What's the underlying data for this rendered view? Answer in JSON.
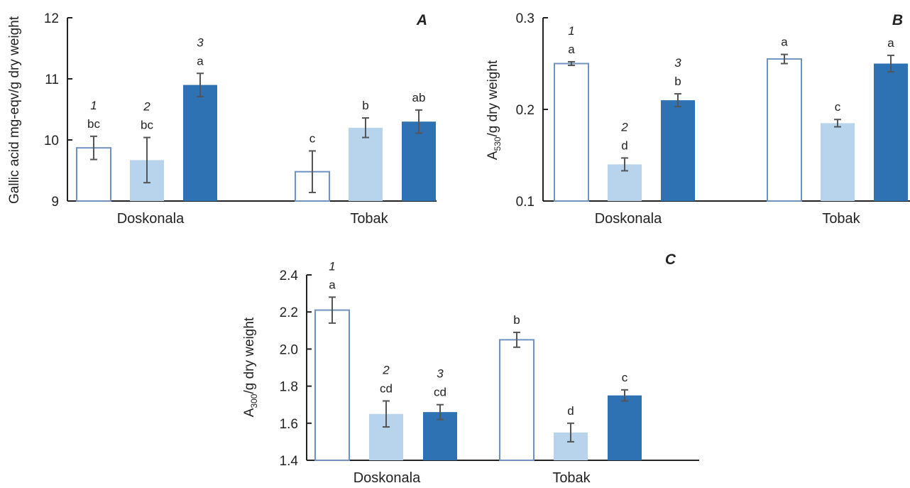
{
  "colors": {
    "treatment1": "#ffffff",
    "treatment1_stroke": "#6f93be",
    "treatment2": "#b7d4ec",
    "treatment3": "#2e72b3",
    "axis": "#222222",
    "error": "#555555"
  },
  "chart_data": [
    {
      "type": "bar",
      "panel_label": "A",
      "ylabel": "Gallic acid mg-eqv/g dry weight",
      "ylim": [
        9,
        12
      ],
      "yticks": [
        "9",
        "10",
        "11",
        "12"
      ],
      "categories": [
        "Doskonala",
        "Tobak"
      ],
      "series": [
        {
          "values": [
            9.87,
            9.48
          ],
          "errors": [
            0.19,
            0.34
          ],
          "letters": [
            "bc",
            "c"
          ],
          "number": "1"
        },
        {
          "values": [
            9.67,
            10.2
          ],
          "errors": [
            0.37,
            0.16
          ],
          "letters": [
            "bc",
            "b"
          ],
          "number": "2"
        },
        {
          "values": [
            10.9,
            10.3
          ],
          "errors": [
            0.19,
            0.19
          ],
          "letters": [
            "a",
            "ab"
          ],
          "number": "3"
        }
      ]
    },
    {
      "type": "bar",
      "panel_label": "B",
      "ylabel_main": "A",
      "ylabel_sub": "530",
      "ylabel_rest": "/g dry weight",
      "ylim": [
        0.1,
        0.3
      ],
      "yticks": [
        "0.1",
        "0.2",
        "0.3"
      ],
      "categories": [
        "Doskonala",
        "Tobak"
      ],
      "series": [
        {
          "values": [
            0.25,
            0.255
          ],
          "errors": [
            0.002,
            0.005
          ],
          "letters": [
            "a",
            "a"
          ],
          "number": "1"
        },
        {
          "values": [
            0.14,
            0.185
          ],
          "errors": [
            0.007,
            0.004
          ],
          "letters": [
            "d",
            "c"
          ],
          "number": "2"
        },
        {
          "values": [
            0.21,
            0.25
          ],
          "errors": [
            0.007,
            0.009
          ],
          "letters": [
            "b",
            "a"
          ],
          "number": "3"
        }
      ]
    },
    {
      "type": "bar",
      "panel_label": "C",
      "ylabel_main": "A",
      "ylabel_sub": "300",
      "ylabel_rest": "/g dry weight",
      "ylim": [
        1.4,
        2.4
      ],
      "yticks": [
        "1.4",
        "1.6",
        "1.8",
        "2.0",
        "2.2",
        "2.4"
      ],
      "categories": [
        "Doskonala",
        "Tobak"
      ],
      "series": [
        {
          "values": [
            2.21,
            2.05
          ],
          "errors": [
            0.07,
            0.04
          ],
          "letters": [
            "a",
            "b"
          ],
          "number": "1"
        },
        {
          "values": [
            1.65,
            1.55
          ],
          "errors": [
            0.07,
            0.05
          ],
          "letters": [
            "cd",
            "d"
          ],
          "number": "2"
        },
        {
          "values": [
            1.66,
            1.75
          ],
          "errors": [
            0.04,
            0.03
          ],
          "letters": [
            "cd",
            "c"
          ],
          "number": "3"
        }
      ]
    }
  ]
}
